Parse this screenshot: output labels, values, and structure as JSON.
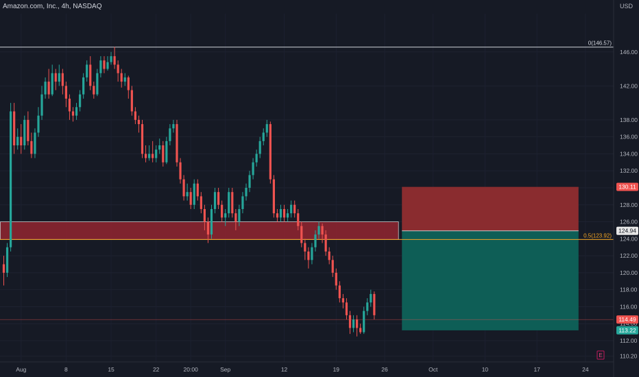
{
  "header": {
    "title": "Amazon.com, Inc., 4h, NASDAQ",
    "currency": "USD"
  },
  "colors": {
    "background": "#161a25",
    "up": "#26a69a",
    "down": "#ef5350",
    "fib_line": "#f5a623",
    "zone_red": "#8b2430",
    "stop_area": "#8a2c2f",
    "target_area": "#0e5e56",
    "axis_text": "#b2b5be"
  },
  "chart_data": {
    "type": "candlestick",
    "instrument": "Amazon.com, Inc.",
    "interval": "4h",
    "exchange": "NASDAQ",
    "y_axis": {
      "ticks": [
        "146.00",
        "142.00",
        "138.00",
        "136.00",
        "134.00",
        "132.00",
        "130.00",
        "128.00",
        "126.00",
        "124.00",
        "122.00",
        "120.00",
        "118.00",
        "116.00",
        "114.00",
        "112.00",
        "110.20"
      ],
      "tick_values": [
        146,
        142,
        138,
        136,
        134,
        132,
        130,
        128,
        126,
        124,
        122,
        120,
        118,
        116,
        114,
        112,
        110.2
      ],
      "range": [
        109.5,
        150.5
      ]
    },
    "x_axis": {
      "labels": [
        "Aug",
        "8",
        "15",
        "22",
        "20:00",
        "Sep",
        "12",
        "19",
        "26",
        "Oct",
        "10",
        "17",
        "24"
      ],
      "bar_index": [
        5,
        18,
        31,
        44,
        54,
        64,
        81,
        96,
        110,
        124,
        139,
        154,
        168
      ]
    },
    "horizontal_lines": [
      {
        "label": "0(146.57)",
        "price": 146.57,
        "color": "#d1d4dc"
      },
      {
        "label": "0.5(123.92)",
        "price": 123.92,
        "color": "#f5a623"
      },
      {
        "label": "",
        "price": 114.49,
        "color": "#ef5350"
      }
    ],
    "zone": {
      "from_bar": 0,
      "to_bar": 114,
      "top": 126.0,
      "bottom": 123.92
    },
    "position": {
      "from_bar": 115,
      "to_bar": 166,
      "entry": 124.94,
      "stop": 130.11,
      "target": 113.22
    },
    "price_labels": [
      {
        "text": "130.11",
        "price": 130.11,
        "bg": "#ef5350",
        "fg": "#ffffff"
      },
      {
        "text": "124.94",
        "price": 124.94,
        "bg": "#e6e6e6",
        "fg": "#131722"
      },
      {
        "text": "114.49",
        "price": 114.49,
        "bg": "#ef5350",
        "fg": "#ffffff"
      },
      {
        "text": "113.22",
        "price": 113.22,
        "bg": "#26a69a",
        "fg": "#ffffff"
      }
    ],
    "event_marker": "E",
    "candles": [
      [
        121.0,
        120.0,
        122.0,
        118.5
      ],
      [
        120.0,
        123.0,
        123.5,
        119.5
      ],
      [
        123.0,
        139.0,
        140.0,
        122.5
      ],
      [
        139.0,
        135.0,
        140.0,
        134.0
      ],
      [
        135.0,
        136.0,
        137.0,
        134.5
      ],
      [
        136.0,
        135.0,
        137.5,
        134.0
      ],
      [
        135.0,
        138.0,
        138.5,
        134.5
      ],
      [
        138.0,
        135.5,
        139.0,
        135.0
      ],
      [
        135.5,
        134.0,
        136.5,
        133.5
      ],
      [
        134.0,
        136.5,
        137.0,
        133.5
      ],
      [
        136.5,
        138.5,
        139.5,
        136.0
      ],
      [
        138.5,
        141.0,
        142.0,
        138.0
      ],
      [
        141.0,
        142.5,
        143.0,
        140.5
      ],
      [
        142.5,
        141.0,
        144.0,
        140.5
      ],
      [
        141.0,
        143.5,
        144.5,
        140.8
      ],
      [
        143.5,
        142.5,
        144.0,
        141.5
      ],
      [
        142.5,
        143.5,
        144.5,
        142.0
      ],
      [
        143.5,
        142.0,
        144.0,
        141.0
      ],
      [
        142.0,
        140.5,
        142.5,
        139.5
      ],
      [
        140.5,
        139.0,
        141.0,
        138.0
      ],
      [
        139.0,
        138.5,
        139.5,
        137.8
      ],
      [
        138.5,
        139.5,
        140.0,
        138.0
      ],
      [
        139.5,
        141.0,
        141.5,
        139.0
      ],
      [
        141.0,
        143.0,
        143.5,
        140.5
      ],
      [
        143.0,
        144.5,
        145.0,
        142.5
      ],
      [
        144.5,
        142.0,
        145.5,
        141.5
      ],
      [
        142.0,
        141.0,
        142.5,
        140.5
      ],
      [
        141.0,
        143.5,
        144.0,
        140.8
      ],
      [
        143.5,
        145.0,
        145.5,
        143.0
      ],
      [
        145.0,
        144.0,
        145.5,
        143.5
      ],
      [
        144.0,
        144.8,
        145.5,
        143.8
      ],
      [
        144.8,
        145.5,
        146.0,
        144.5
      ],
      [
        145.5,
        144.5,
        146.6,
        144.0
      ],
      [
        144.5,
        143.5,
        145.0,
        142.5
      ],
      [
        143.5,
        142.5,
        144.0,
        141.8
      ],
      [
        142.5,
        143.0,
        143.5,
        142.0
      ],
      [
        143.0,
        141.5,
        143.2,
        140.5
      ],
      [
        141.5,
        139.0,
        142.0,
        138.5
      ],
      [
        139.0,
        138.0,
        139.5,
        137.5
      ],
      [
        138.0,
        137.5,
        138.5,
        136.5
      ],
      [
        137.5,
        134.0,
        138.0,
        133.5
      ],
      [
        134.0,
        133.5,
        135.0,
        133.0
      ],
      [
        133.5,
        134.0,
        135.0,
        133.2
      ],
      [
        134.0,
        133.5,
        135.5,
        133.0
      ],
      [
        133.5,
        134.5,
        135.0,
        133.0
      ],
      [
        134.5,
        135.0,
        135.8,
        134.0
      ],
      [
        135.0,
        133.0,
        135.5,
        132.5
      ],
      [
        133.0,
        135.5,
        136.0,
        132.8
      ],
      [
        135.5,
        137.0,
        137.5,
        135.0
      ],
      [
        137.0,
        137.5,
        138.0,
        136.5
      ],
      [
        137.5,
        133.0,
        138.0,
        132.5
      ],
      [
        133.0,
        131.0,
        133.5,
        130.5
      ],
      [
        131.0,
        129.0,
        131.5,
        128.5
      ],
      [
        129.0,
        129.5,
        130.5,
        128.5
      ],
      [
        129.5,
        128.0,
        130.0,
        127.5
      ],
      [
        128.0,
        130.5,
        131.0,
        127.5
      ],
      [
        130.5,
        129.0,
        131.0,
        128.5
      ],
      [
        129.0,
        127.5,
        129.5,
        127.0
      ],
      [
        127.5,
        126.0,
        128.0,
        125.0
      ],
      [
        126.0,
        124.5,
        126.5,
        123.5
      ],
      [
        124.5,
        127.5,
        128.0,
        124.0
      ],
      [
        127.5,
        129.5,
        130.0,
        127.0
      ],
      [
        129.5,
        128.0,
        130.0,
        127.5
      ],
      [
        128.0,
        126.5,
        128.5,
        126.0
      ],
      [
        126.5,
        127.0,
        127.5,
        125.5
      ],
      [
        127.0,
        129.5,
        130.0,
        126.5
      ],
      [
        129.5,
        127.0,
        130.0,
        126.5
      ],
      [
        127.0,
        126.0,
        127.5,
        125.0
      ],
      [
        126.0,
        127.5,
        128.0,
        125.5
      ],
      [
        127.5,
        129.0,
        129.5,
        127.0
      ],
      [
        129.0,
        130.0,
        130.5,
        128.5
      ],
      [
        130.0,
        131.5,
        132.0,
        129.5
      ],
      [
        131.5,
        133.0,
        133.5,
        131.0
      ],
      [
        133.0,
        134.0,
        134.5,
        132.5
      ],
      [
        134.0,
        135.5,
        136.0,
        133.5
      ],
      [
        135.5,
        136.5,
        137.0,
        135.0
      ],
      [
        136.5,
        137.5,
        138.0,
        136.0
      ],
      [
        137.5,
        131.0,
        137.8,
        130.5
      ],
      [
        131.0,
        127.0,
        131.5,
        126.5
      ],
      [
        127.0,
        126.5,
        127.5,
        126.0
      ],
      [
        126.5,
        127.5,
        128.0,
        126.0
      ],
      [
        127.5,
        126.5,
        128.0,
        126.0
      ],
      [
        126.5,
        127.0,
        127.5,
        126.0
      ],
      [
        127.0,
        128.0,
        128.5,
        126.5
      ],
      [
        128.0,
        127.0,
        128.5,
        126.5
      ],
      [
        127.0,
        125.5,
        127.5,
        125.0
      ],
      [
        125.5,
        123.5,
        126.0,
        123.0
      ],
      [
        123.5,
        122.5,
        124.0,
        121.5
      ],
      [
        122.5,
        121.5,
        123.0,
        120.5
      ],
      [
        121.5,
        123.0,
        123.5,
        121.0
      ],
      [
        123.0,
        124.5,
        125.0,
        122.5
      ],
      [
        124.5,
        125.5,
        126.0,
        124.0
      ],
      [
        125.5,
        124.5,
        125.8,
        123.5
      ],
      [
        124.5,
        122.5,
        125.0,
        122.0
      ],
      [
        122.5,
        121.5,
        123.0,
        121.0
      ],
      [
        121.5,
        120.0,
        122.0,
        119.5
      ],
      [
        120.0,
        118.5,
        120.5,
        118.0
      ],
      [
        118.5,
        117.0,
        119.0,
        116.5
      ],
      [
        117.0,
        116.5,
        117.5,
        115.8
      ],
      [
        116.5,
        115.0,
        117.0,
        114.5
      ],
      [
        115.0,
        113.5,
        115.5,
        112.8
      ],
      [
        113.5,
        114.5,
        115.0,
        113.0
      ],
      [
        114.5,
        113.5,
        115.0,
        112.5
      ],
      [
        113.5,
        113.0,
        114.0,
        112.8
      ],
      [
        113.0,
        115.5,
        116.0,
        112.8
      ],
      [
        115.5,
        116.5,
        117.0,
        115.0
      ],
      [
        116.5,
        117.5,
        118.0,
        116.0
      ],
      [
        117.5,
        115.0,
        117.8,
        114.5
      ]
    ]
  }
}
